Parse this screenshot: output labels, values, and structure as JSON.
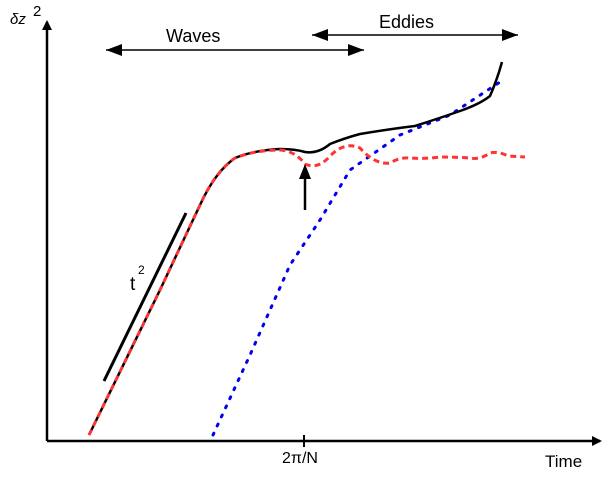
{
  "diagram": {
    "y_label_main": "δz",
    "y_label_exponent": "2",
    "x_label": "Time",
    "x_tick_label": "2π/N",
    "waves_label": "Waves",
    "eddies_label": "Eddies",
    "slope_label_main": "t",
    "slope_label_exponent": "2",
    "colors": {
      "axes": "#000000",
      "total_curve": "#000000",
      "waves_curve": "#ff3333",
      "eddies_curve": "#0000ee",
      "waves_text": "#ff3333",
      "eddies_text": "#3333dd"
    }
  }
}
